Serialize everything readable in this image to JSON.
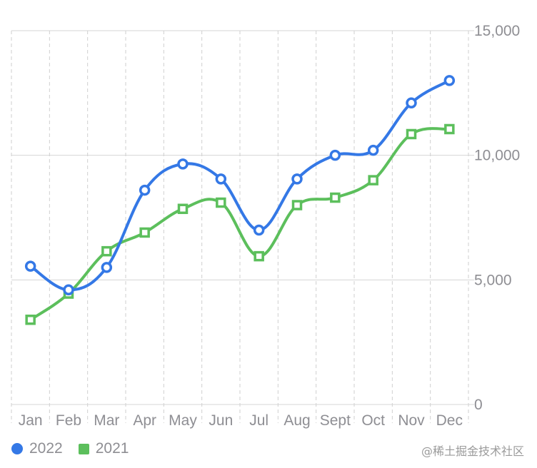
{
  "chart_data": {
    "type": "line",
    "categories": [
      "Jan",
      "Feb",
      "Mar",
      "Apr",
      "May",
      "Jun",
      "Jul",
      "Aug",
      "Sept",
      "Oct",
      "Nov",
      "Dec"
    ],
    "series": [
      {
        "name": "2022",
        "color": "#3478e6",
        "marker": "circle",
        "values": [
          5550,
          4600,
          5500,
          8600,
          9650,
          9050,
          7000,
          9050,
          10000,
          10200,
          12100,
          13000
        ]
      },
      {
        "name": "2021",
        "color": "#5cbf5c",
        "marker": "square",
        "values": [
          3400,
          4450,
          6150,
          6900,
          7850,
          8100,
          5950,
          8000,
          8300,
          9000,
          10850,
          11050
        ]
      }
    ],
    "ylim": [
      0,
      15000
    ],
    "yticks": [
      "0",
      "5,000",
      "10,000",
      "15,000"
    ],
    "y_axis_position": "right",
    "curve": "smooth",
    "grid": true,
    "legend_position": "bottom-left"
  },
  "watermark": "@稀土掘金技术社区"
}
